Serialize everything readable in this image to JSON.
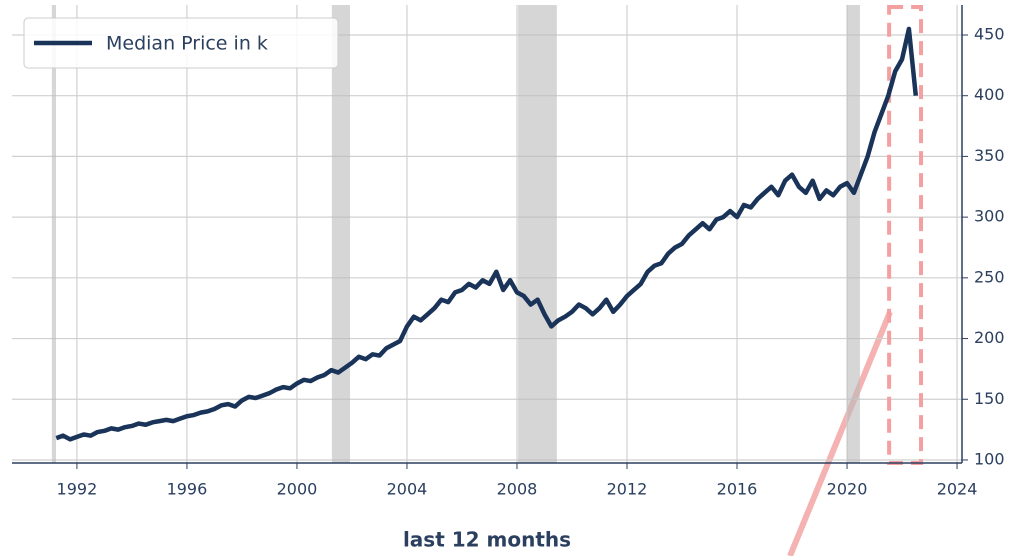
{
  "chart_data": {
    "type": "line",
    "x": [
      1991.25,
      1991.5,
      1991.75,
      1992,
      1992.25,
      1992.5,
      1992.75,
      1993,
      1993.25,
      1993.5,
      1993.75,
      1994,
      1994.25,
      1994.5,
      1994.75,
      1995,
      1995.25,
      1995.5,
      1995.75,
      1996,
      1996.25,
      1996.5,
      1996.75,
      1997,
      1997.25,
      1997.5,
      1997.75,
      1998,
      1998.25,
      1998.5,
      1998.75,
      1999,
      1999.25,
      1999.5,
      1999.75,
      2000,
      2000.25,
      2000.5,
      2000.75,
      2001,
      2001.25,
      2001.5,
      2001.75,
      2002,
      2002.25,
      2002.5,
      2002.75,
      2003,
      2003.25,
      2003.5,
      2003.75,
      2004,
      2004.25,
      2004.5,
      2004.75,
      2005,
      2005.25,
      2005.5,
      2005.75,
      2006,
      2006.25,
      2006.5,
      2006.75,
      2007,
      2007.25,
      2007.5,
      2007.75,
      2008,
      2008.25,
      2008.5,
      2008.75,
      2009,
      2009.25,
      2009.5,
      2009.75,
      2010,
      2010.25,
      2010.5,
      2010.75,
      2011,
      2011.25,
      2011.5,
      2011.75,
      2012,
      2012.25,
      2012.5,
      2012.75,
      2013,
      2013.25,
      2013.5,
      2013.75,
      2014,
      2014.25,
      2014.5,
      2014.75,
      2015,
      2015.25,
      2015.5,
      2015.75,
      2016,
      2016.25,
      2016.5,
      2016.75,
      2017,
      2017.25,
      2017.5,
      2017.75,
      2018,
      2018.25,
      2018.5,
      2018.75,
      2019,
      2019.25,
      2019.5,
      2019.75,
      2020,
      2020.25,
      2020.5,
      2020.75,
      2021,
      2021.25,
      2021.5,
      2021.75,
      2022,
      2022.25,
      2022.5
    ],
    "series": [
      {
        "name": "Median Price in k",
        "color": "#1a3359",
        "values": [
          118,
          120,
          117,
          119,
          121,
          120,
          123,
          124,
          126,
          125,
          127,
          128,
          130,
          129,
          131,
          132,
          133,
          132,
          134,
          136,
          137,
          139,
          140,
          142,
          145,
          146,
          144,
          149,
          152,
          151,
          153,
          155,
          158,
          160,
          159,
          163,
          166,
          165,
          168,
          170,
          174,
          172,
          176,
          180,
          185,
          183,
          187,
          186,
          192,
          195,
          198,
          210,
          218,
          215,
          220,
          225,
          232,
          230,
          238,
          240,
          245,
          242,
          248,
          245,
          255,
          240,
          248,
          238,
          235,
          228,
          232,
          220,
          210,
          215,
          218,
          222,
          228,
          225,
          220,
          225,
          232,
          222,
          228,
          235,
          240,
          245,
          255,
          260,
          262,
          270,
          275,
          278,
          285,
          290,
          295,
          290,
          298,
          300,
          305,
          300,
          310,
          308,
          315,
          320,
          325,
          318,
          330,
          335,
          325,
          320,
          330,
          315,
          322,
          318,
          325,
          328,
          320,
          335,
          350,
          370,
          385,
          400,
          420,
          430,
          455,
          400
        ]
      }
    ],
    "xlim": [
      1989.64,
      2024.18
    ],
    "ylim": [
      97.5,
      474.7
    ],
    "xticks": [
      1992,
      1996,
      2000,
      2004,
      2008,
      2012,
      2016,
      2020,
      2024
    ],
    "yticks": [
      100,
      150,
      200,
      250,
      300,
      350,
      400,
      450
    ],
    "recessions": [
      [
        1991.09,
        1991.24
      ],
      [
        2001.27,
        2001.93
      ],
      [
        2008.04,
        2009.45
      ],
      [
        2020.0,
        2020.47
      ]
    ],
    "highlight": [
      2021.53,
      2022.69
    ],
    "annotation": "last 12 months",
    "grid": true,
    "legend": "upper left"
  }
}
